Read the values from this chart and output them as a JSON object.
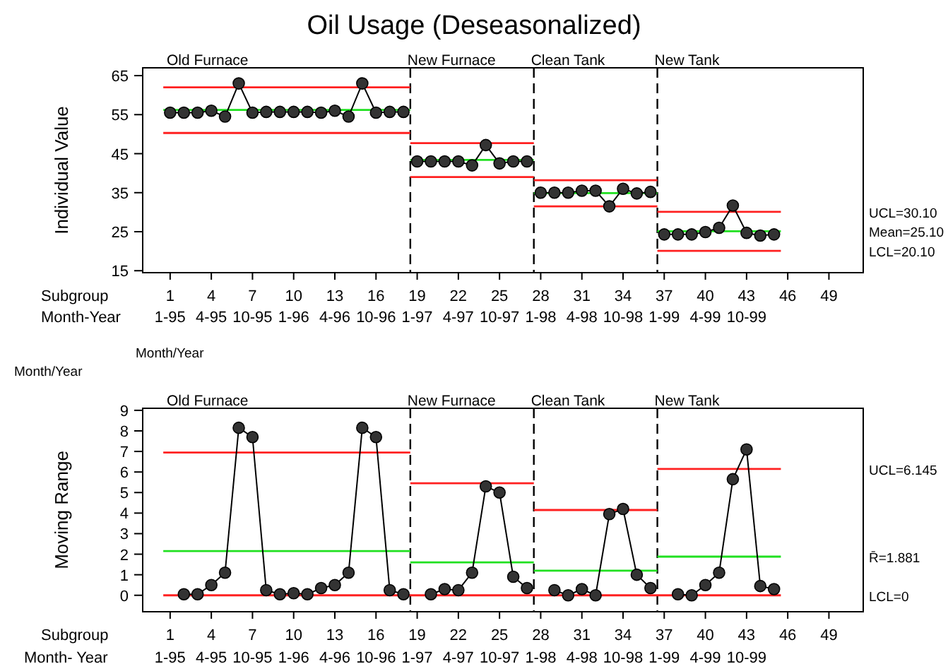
{
  "chart_data": [
    {
      "type": "line",
      "title": "Oil Usage (Deseasonalized)",
      "ylabel": "Individual Value",
      "xlim": [
        -1,
        51.5
      ],
      "ylim": [
        14.5,
        67
      ],
      "yticks": [
        15,
        25,
        35,
        45,
        55,
        65
      ],
      "xticks": [
        {
          "value": 1,
          "label": "1\n1-95"
        },
        {
          "value": 4,
          "label": "4\n4-95"
        },
        {
          "value": 7,
          "label": "7\n10-95"
        },
        {
          "value": 10,
          "label": "10\n1-96"
        },
        {
          "value": 13,
          "label": "13\n4-96"
        },
        {
          "value": 16,
          "label": "16\n10-96"
        },
        {
          "value": 19,
          "label": "19\n1-97"
        },
        {
          "value": 22,
          "label": "22\n4-97"
        },
        {
          "value": 25,
          "label": "25\n10-97"
        },
        {
          "value": 28,
          "label": "28\n1-98"
        },
        {
          "value": 31,
          "label": "31\n4-98"
        },
        {
          "value": 34,
          "label": "34\n10-98"
        },
        {
          "value": 37,
          "label": "37\n1-99"
        },
        {
          "value": 40,
          "label": "40\n4-99"
        },
        {
          "value": 43,
          "label": "43\n10-99"
        },
        {
          "value": 46,
          "label": "46"
        },
        {
          "value": 49,
          "label": "49"
        }
      ],
      "marker": "circle",
      "grid": false,
      "series": [
        {
          "color": "#ff2020",
          "marker": "none",
          "x": [
            0.5,
            18.5
          ],
          "values": [
            62,
            62
          ]
        },
        {
          "color": "#ff2020",
          "marker": "none",
          "x": [
            18.5,
            27.5
          ],
          "values": [
            47.7,
            47.7
          ]
        },
        {
          "color": "#ff2020",
          "marker": "none",
          "x": [
            27.5,
            36.5
          ],
          "values": [
            38.2,
            38.2
          ]
        },
        {
          "color": "#ff2020",
          "marker": "none",
          "x": [
            36.5,
            45.5
          ],
          "values": [
            30.1,
            30.1
          ]
        },
        {
          "color": "#ff2020",
          "marker": "none",
          "x": [
            0.5,
            18.5
          ],
          "values": [
            50.3,
            50.3
          ]
        },
        {
          "color": "#ff2020",
          "marker": "none",
          "x": [
            18.5,
            27.5
          ],
          "values": [
            39,
            39
          ]
        },
        {
          "color": "#ff2020",
          "marker": "none",
          "x": [
            27.5,
            36.5
          ],
          "values": [
            31.5,
            31.5
          ]
        },
        {
          "color": "#ff2020",
          "marker": "none",
          "x": [
            36.5,
            45.5
          ],
          "values": [
            20.1,
            20.1
          ]
        },
        {
          "color": "#20e020",
          "marker": "none",
          "x": [
            0.5,
            18.5
          ],
          "values": [
            56.2,
            56.2
          ]
        },
        {
          "color": "#20e020",
          "marker": "none",
          "x": [
            18.5,
            27.5
          ],
          "values": [
            43.4,
            43.4
          ]
        },
        {
          "color": "#20e020",
          "marker": "none",
          "x": [
            27.5,
            36.5
          ],
          "values": [
            34.9,
            34.9
          ]
        },
        {
          "color": "#20e020",
          "marker": "none",
          "x": [
            36.5,
            45.5
          ],
          "values": [
            25.1,
            25.1
          ]
        },
        {
          "color": "#000000",
          "x": [
            1,
            2,
            3,
            4,
            5,
            6,
            7,
            8,
            9,
            10,
            11,
            12,
            13,
            14,
            15,
            16,
            17,
            18
          ],
          "values": [
            55.5,
            55.5,
            55.5,
            56,
            54.5,
            63,
            55.5,
            55.7,
            55.7,
            55.7,
            55.7,
            55.5,
            56,
            54.5,
            63,
            55.5,
            55.7,
            55.7
          ]
        },
        {
          "color": "#000000",
          "x": [
            19,
            20,
            21,
            22,
            23,
            24,
            25,
            26,
            27
          ],
          "values": [
            43,
            43,
            43,
            43,
            42,
            47.2,
            42.5,
            43,
            43
          ]
        },
        {
          "color": "#000000",
          "x": [
            28,
            29,
            30,
            31,
            32,
            33,
            34,
            35,
            36
          ],
          "values": [
            35,
            35,
            35,
            35.5,
            35.5,
            31.5,
            36,
            34.8,
            35.2
          ]
        },
        {
          "color": "#000000",
          "x": [
            37,
            38,
            39,
            40,
            41,
            42,
            43,
            44,
            45
          ],
          "values": [
            24.3,
            24.3,
            24.3,
            24.9,
            26,
            31.7,
            24.7,
            24,
            24.3
          ]
        }
      ],
      "ref_lines": [
        {
          "axis": "x",
          "value": 18.5,
          "color": "#000000",
          "line_style": "dashed"
        },
        {
          "axis": "x",
          "value": 27.5,
          "color": "#000000",
          "line_style": "dashed"
        },
        {
          "axis": "x",
          "value": 36.5,
          "color": "#000000",
          "line_style": "dashed"
        }
      ],
      "annotations": [
        "Subgroup",
        "Month-Year",
        "Old Furnace",
        "New Furnace",
        "Clean Tank",
        "New Tank",
        "UCL=30.10",
        "Mean=25.10",
        "LCL=20.10"
      ]
    },
    {
      "type": "line",
      "ylabel": "Moving Range",
      "xlim": [
        -1,
        51.5
      ],
      "ylim": [
        -0.8,
        9.1
      ],
      "yticks": [
        0,
        1,
        2,
        3,
        4,
        5,
        6,
        7,
        8,
        9
      ],
      "xticks": [
        {
          "value": 1,
          "label": "1\n1-95"
        },
        {
          "value": 4,
          "label": "4\n4-95"
        },
        {
          "value": 7,
          "label": "7\n10-95"
        },
        {
          "value": 10,
          "label": "10\n1-96"
        },
        {
          "value": 13,
          "label": "13\n4-96"
        },
        {
          "value": 16,
          "label": "16\n10-96"
        },
        {
          "value": 19,
          "label": "19\n1-97"
        },
        {
          "value": 22,
          "label": "22\n4-97"
        },
        {
          "value": 25,
          "label": "25\n10-97"
        },
        {
          "value": 28,
          "label": "28\n1-98"
        },
        {
          "value": 31,
          "label": "31\n4-98"
        },
        {
          "value": 34,
          "label": "34\n10-98"
        },
        {
          "value": 37,
          "label": "37\n1-99"
        },
        {
          "value": 40,
          "label": "40\n4-99"
        },
        {
          "value": 43,
          "label": "43\n10-99"
        },
        {
          "value": 46,
          "label": "46"
        },
        {
          "value": 49,
          "label": "49"
        }
      ],
      "marker": "circle",
      "grid": false,
      "series": [
        {
          "color": "#ff2020",
          "marker": "none",
          "x": [
            0.5,
            18.5
          ],
          "values": [
            6.95,
            6.95
          ]
        },
        {
          "color": "#ff2020",
          "marker": "none",
          "x": [
            18.5,
            27.5
          ],
          "values": [
            5.45,
            5.45
          ]
        },
        {
          "color": "#ff2020",
          "marker": "none",
          "x": [
            27.5,
            36.5
          ],
          "values": [
            4.15,
            4.15
          ]
        },
        {
          "color": "#ff2020",
          "marker": "none",
          "x": [
            36.5,
            45.5
          ],
          "values": [
            6.145,
            6.145
          ]
        },
        {
          "color": "#ff2020",
          "marker": "none",
          "x": [
            0.5,
            45.5
          ],
          "values": [
            0,
            0
          ]
        },
        {
          "color": "#20e020",
          "marker": "none",
          "x": [
            0.5,
            18.5
          ],
          "values": [
            2.15,
            2.15
          ]
        },
        {
          "color": "#20e020",
          "marker": "none",
          "x": [
            18.5,
            27.5
          ],
          "values": [
            1.6,
            1.6
          ]
        },
        {
          "color": "#20e020",
          "marker": "none",
          "x": [
            27.5,
            36.5
          ],
          "values": [
            1.2,
            1.2
          ]
        },
        {
          "color": "#20e020",
          "marker": "none",
          "x": [
            36.5,
            45.5
          ],
          "values": [
            1.881,
            1.881
          ]
        },
        {
          "color": "#000000",
          "x": [
            2,
            3,
            4,
            5,
            6,
            7,
            8,
            9,
            10,
            11,
            12,
            13,
            14,
            15,
            16,
            17,
            18
          ],
          "values": [
            0.05,
            0.05,
            0.5,
            1.1,
            8.15,
            7.7,
            0.25,
            0.05,
            0.1,
            0.05,
            0.35,
            0.5,
            1.1,
            8.15,
            7.7,
            0.25,
            0.05
          ]
        },
        {
          "color": "#000000",
          "x": [
            20,
            21,
            22,
            23,
            24,
            25,
            26,
            27
          ],
          "values": [
            0.05,
            0.3,
            0.25,
            1.1,
            5.3,
            5,
            0.9,
            0.35
          ]
        },
        {
          "color": "#000000",
          "x": [
            29,
            30,
            31,
            32,
            33,
            34,
            35,
            36
          ],
          "values": [
            0.25,
            0,
            0.3,
            0,
            3.95,
            4.2,
            1,
            0.35
          ]
        },
        {
          "color": "#000000",
          "x": [
            38,
            39,
            40,
            41,
            42,
            43,
            44,
            45
          ],
          "values": [
            0.05,
            0,
            0.5,
            1.1,
            5.65,
            7.1,
            0.45,
            0.3
          ]
        }
      ],
      "ref_lines": [
        {
          "axis": "x",
          "value": 18.5,
          "color": "#000000",
          "line_style": "dashed"
        },
        {
          "axis": "x",
          "value": 27.5,
          "color": "#000000",
          "line_style": "dashed"
        },
        {
          "axis": "x",
          "value": 36.5,
          "color": "#000000",
          "line_style": "dashed"
        }
      ],
      "annotations": [
        "Month/Year",
        "Month/Year",
        "Subgroup",
        "Month- Year",
        "Old Furnace",
        "New Furnace",
        "Clean Tank",
        "New Tank",
        "UCL=6.145",
        "R̄=1.881",
        "LCL=0"
      ]
    }
  ]
}
